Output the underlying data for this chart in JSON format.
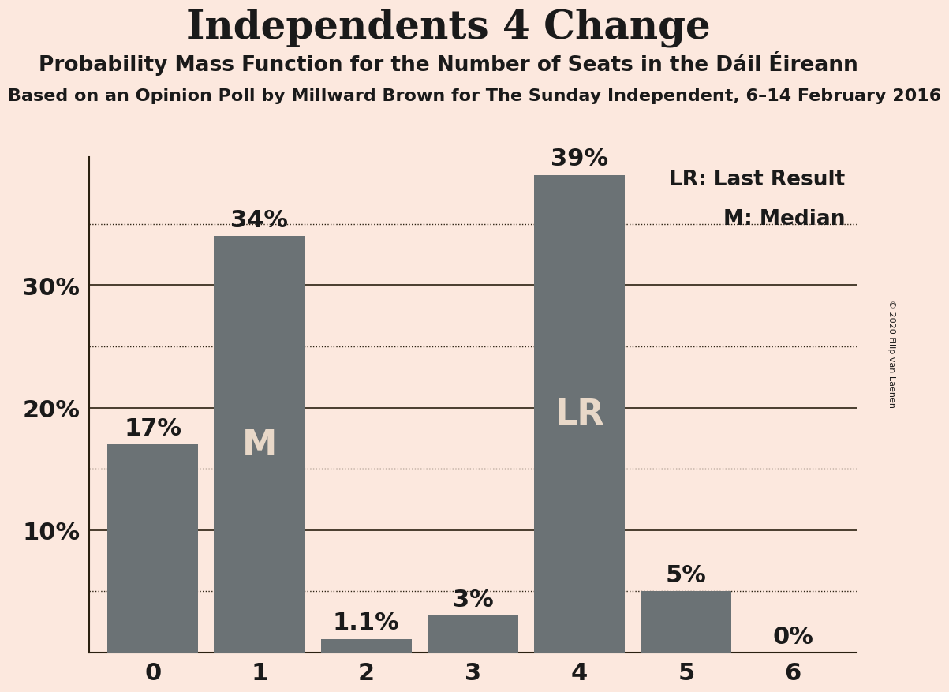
{
  "title": "Independents 4 Change",
  "subtitle": "Probability Mass Function for the Number of Seats in the Dáil Éireann",
  "subtitle2": "Based on an Opinion Poll by Millward Brown for The Sunday Independent, 6–14 February 2016",
  "copyright": "© 2020 Filip van Laenen",
  "categories": [
    0,
    1,
    2,
    3,
    4,
    5,
    6
  ],
  "values": [
    0.17,
    0.34,
    0.011,
    0.03,
    0.39,
    0.05,
    0.0
  ],
  "labels": [
    "17%",
    "34%",
    "1.1%",
    "3%",
    "39%",
    "5%",
    "0%"
  ],
  "bar_color": "#6b7275",
  "background_color": "#fce8de",
  "label_color_outside": "#1a1a1a",
  "label_color_inside": "#e8d8c8",
  "median_bar": 1,
  "lr_bar": 4,
  "median_label": "M",
  "lr_label": "LR",
  "legend_lr": "LR: Last Result",
  "legend_m": "M: Median",
  "ylim": [
    0,
    0.405
  ],
  "yticks": [
    0.1,
    0.2,
    0.3
  ],
  "ytick_labels": [
    "10%",
    "20%",
    "30%"
  ],
  "dotted_lines": [
    0.05,
    0.15,
    0.25,
    0.35
  ],
  "solid_lines": [
    0.1,
    0.2,
    0.3
  ],
  "grid_color": "#2a2010",
  "title_fontsize": 36,
  "subtitle_fontsize": 19,
  "subtitle2_fontsize": 16,
  "bar_label_fontsize": 22,
  "inner_label_fontsize": 32,
  "axis_label_fontsize": 22,
  "legend_fontsize": 19,
  "copyright_fontsize": 8
}
